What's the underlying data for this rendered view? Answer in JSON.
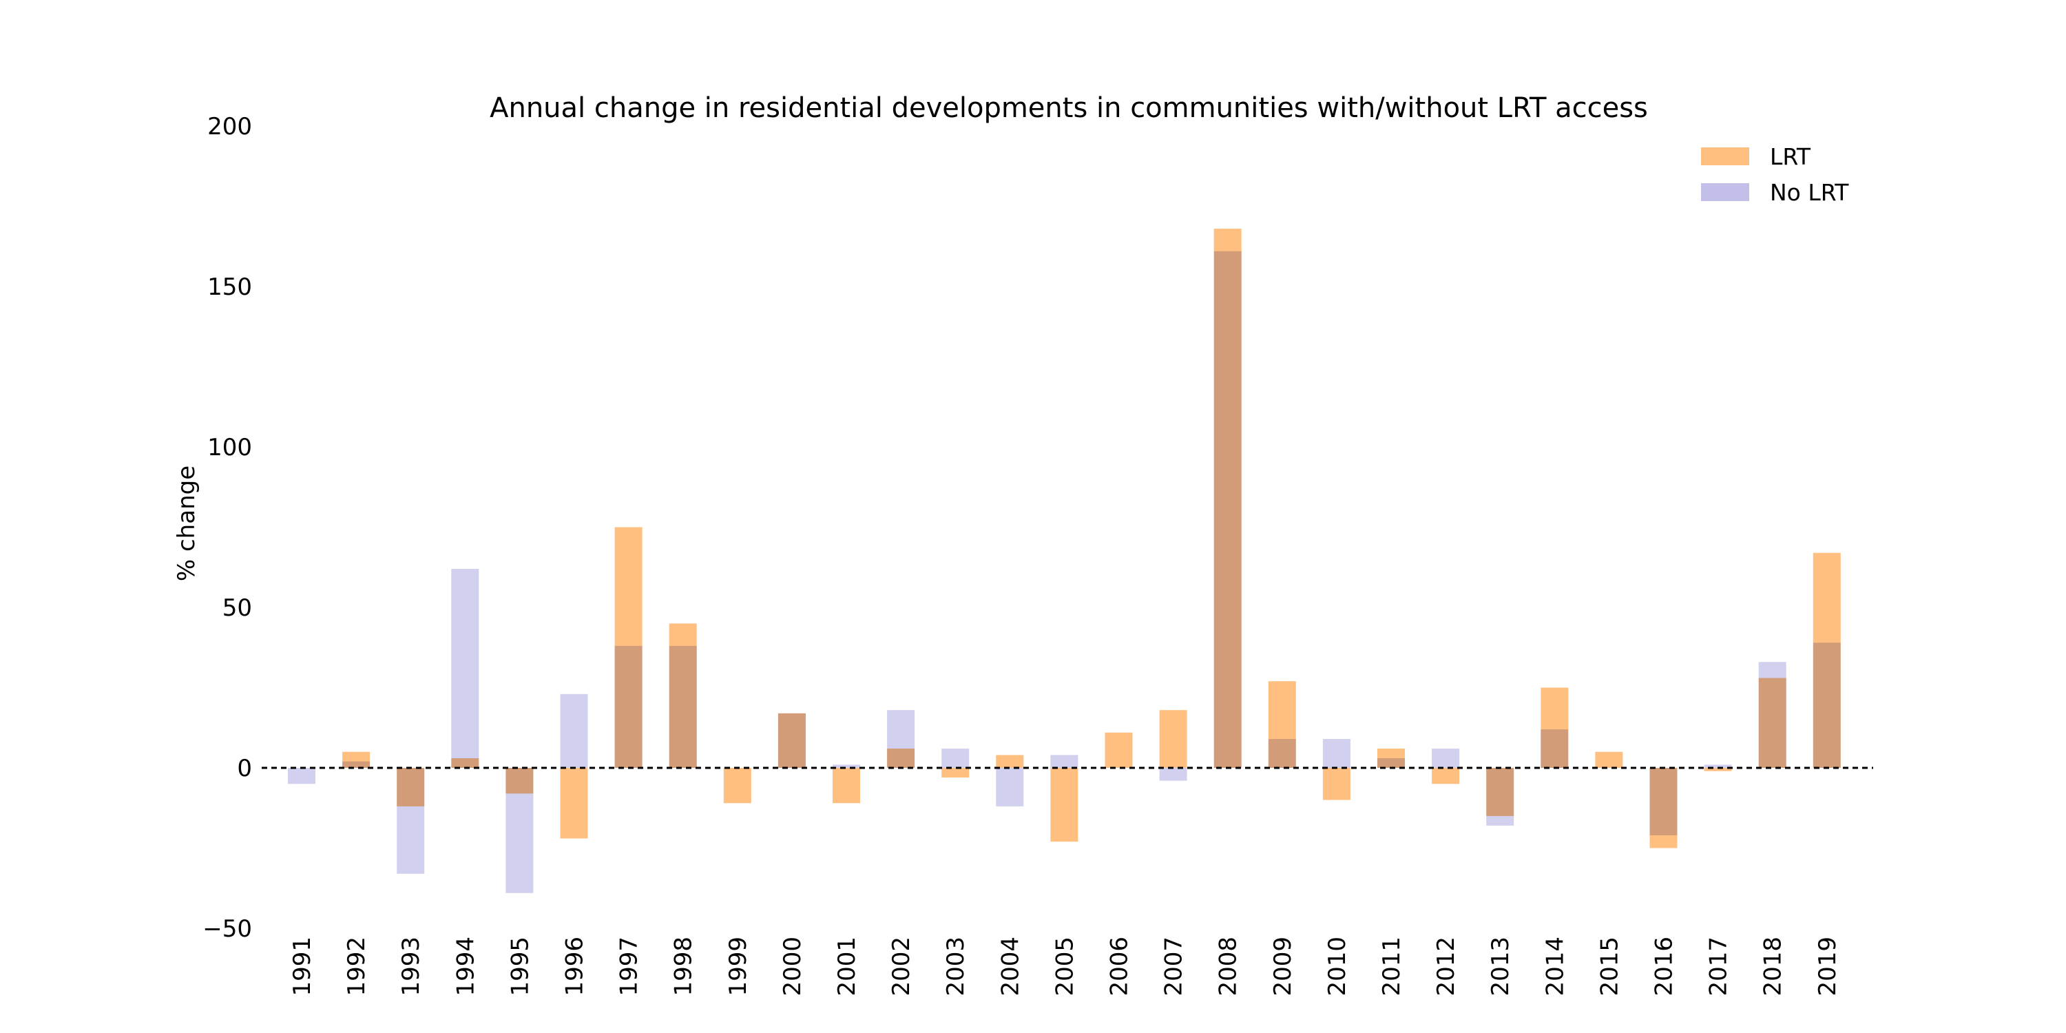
{
  "chart_data": {
    "type": "bar",
    "title": "Annual change in residential developments in communities with/without LRT access",
    "xlabel": "",
    "ylabel": "% change",
    "ylim": [
      -50,
      200
    ],
    "yticks": [
      -50,
      0,
      50,
      100,
      150,
      200
    ],
    "grid": false,
    "legend_position": "top-right",
    "zero_line": "dashed",
    "categories": [
      "1991",
      "1992",
      "1993",
      "1994",
      "1995",
      "1996",
      "1997",
      "1998",
      "1999",
      "2000",
      "2001",
      "2002",
      "2003",
      "2004",
      "2005",
      "2006",
      "2007",
      "2008",
      "2009",
      "2010",
      "2011",
      "2012",
      "2013",
      "2014",
      "2015",
      "2016",
      "2017",
      "2018",
      "2019"
    ],
    "series": [
      {
        "name": "LRT",
        "color": "#ffbf80",
        "values": [
          0,
          5,
          -12,
          3,
          -8,
          -22,
          75,
          45,
          -11,
          17,
          -11,
          6,
          -3,
          4,
          -23,
          11,
          18,
          168,
          27,
          -10,
          6,
          -5,
          -15,
          25,
          5,
          -25,
          -1,
          28,
          67
        ]
      },
      {
        "name": "No LRT",
        "color": "#c2c0e8",
        "values": [
          -5,
          2,
          -33,
          62,
          -39,
          23,
          38,
          38,
          0,
          17,
          1,
          18,
          6,
          -12,
          4,
          0,
          -4,
          161,
          9,
          9,
          3,
          6,
          -18,
          12,
          0,
          -21,
          1,
          33,
          39
        ]
      }
    ]
  }
}
